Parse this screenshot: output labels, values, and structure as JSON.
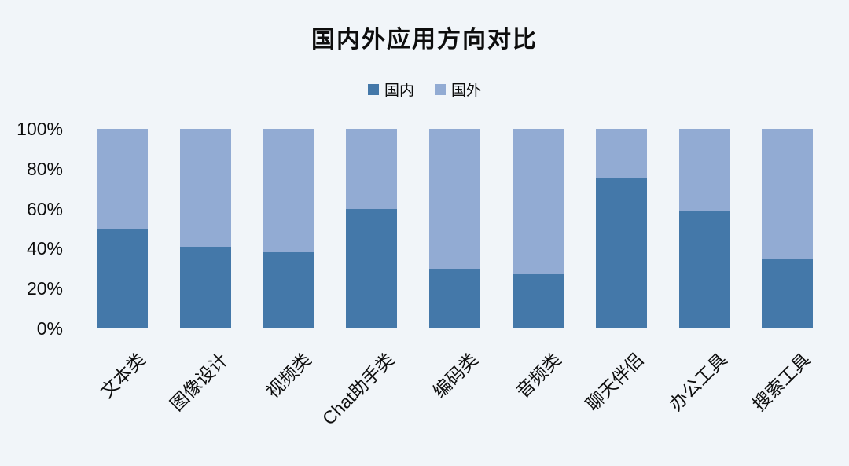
{
  "page": {
    "background_color": "#f1f5f9"
  },
  "chart_data": {
    "type": "bar",
    "stacked": true,
    "percent_stacked": true,
    "title": "国内外应用方向对比",
    "xlabel": "",
    "ylabel": "",
    "categories": [
      "文本类",
      "图像设计",
      "视频类",
      "Chat助手类",
      "编码类",
      "音频类",
      "聊天伴侣",
      "办公工具",
      "搜索工具"
    ],
    "series": [
      {
        "name": "国内",
        "color": "#4478a9",
        "values": [
          50,
          41,
          38,
          60,
          30,
          27,
          75,
          59,
          35
        ]
      },
      {
        "name": "国外",
        "color": "#92abd3",
        "values": [
          50,
          59,
          62,
          40,
          70,
          73,
          25,
          41,
          65
        ]
      }
    ],
    "yticks": [
      0,
      20,
      40,
      60,
      80,
      100
    ],
    "ytick_labels": [
      "0%",
      "20%",
      "40%",
      "60%",
      "80%",
      "100%"
    ],
    "ylim": [
      0,
      100
    ],
    "grid": false,
    "legend_position": "top-center",
    "x_label_rotation_deg": 45
  }
}
